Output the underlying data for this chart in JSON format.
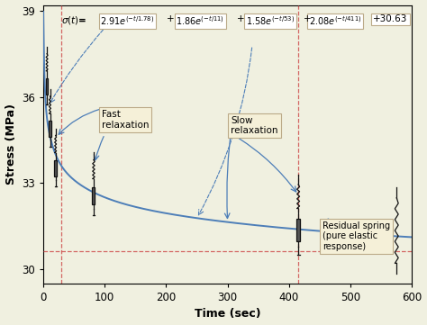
{
  "xlabel": "Time (sec)",
  "ylabel": "Stress (MPa)",
  "xlim": [
    0,
    600
  ],
  "ylim": [
    29.5,
    39.2
  ],
  "xticks": [
    0,
    100,
    200,
    300,
    400,
    500,
    600
  ],
  "yticks": [
    30,
    33,
    36,
    39
  ],
  "A1": 2.91,
  "tau1": 1.78,
  "A2": 1.86,
  "tau2": 11,
  "A3": 1.58,
  "tau3": 53,
  "A4": 2.08,
  "tau4": 411,
  "C": 30.63,
  "curve_color": "#4d7eb8",
  "bg_color": "#f0f0e0",
  "dashed_vline_x1": 30,
  "dashed_vline_x2": 415,
  "fast_relax_label": "Fast\nrelaxation",
  "slow_relax_label": "Slow\nrelaxation",
  "residual_label": "Residual spring\n(pure elastic\nresponse)"
}
